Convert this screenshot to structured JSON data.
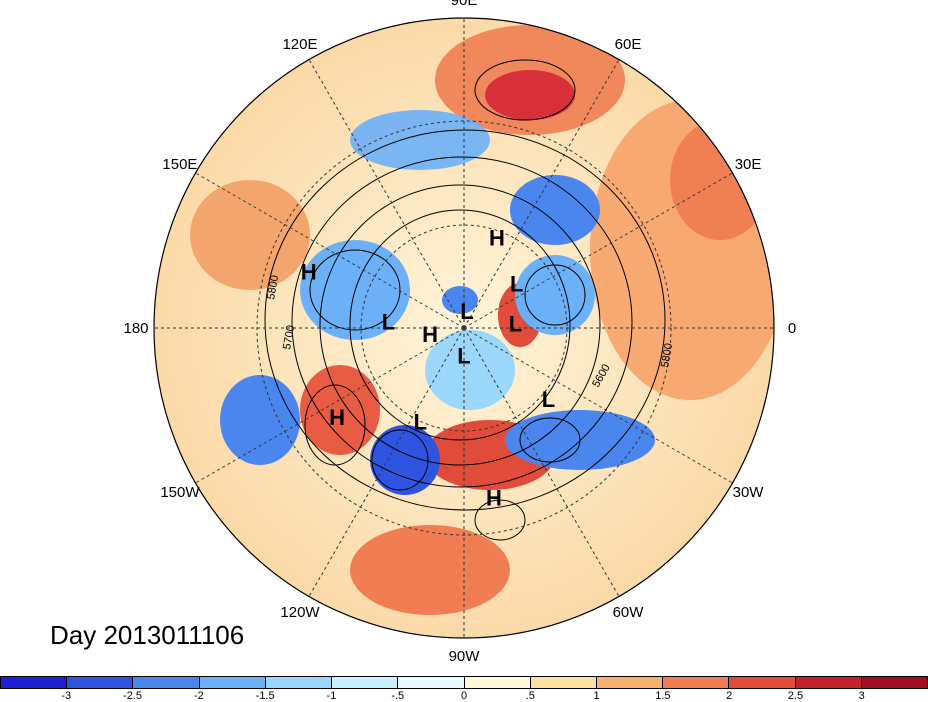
{
  "title": "Day 2013011106",
  "longitude_labels": [
    "90E",
    "60E",
    "30E",
    "0",
    "30W",
    "60W",
    "90W",
    "120W",
    "150W",
    "180",
    "150E",
    "120E"
  ],
  "contour_labels": [
    "5800",
    "5700",
    "5600",
    "5800"
  ],
  "pressure_centers": [
    {
      "label": "H",
      "lon": 70,
      "lat": 62
    },
    {
      "label": "H",
      "lon": 160,
      "lat": 42
    },
    {
      "label": "L",
      "lon": 40,
      "lat": 70
    },
    {
      "label": "L",
      "lon": 175,
      "lat": 68
    },
    {
      "label": "H",
      "lon": 190,
      "lat": 80
    },
    {
      "label": "L",
      "lon": 80,
      "lat": 85
    },
    {
      "label": "L",
      "lon": 5,
      "lat": 75
    },
    {
      "label": "L",
      "lon": 270,
      "lat": 82
    },
    {
      "label": "H",
      "lon": 215,
      "lat": 45
    },
    {
      "label": "L",
      "lon": 245,
      "lat": 60
    },
    {
      "label": "L",
      "lon": 320,
      "lat": 58
    },
    {
      "label": "H",
      "lon": 280,
      "lat": 40
    }
  ],
  "colorbar": {
    "ticks": [
      "-3",
      "-2.5",
      "-2",
      "-1.5",
      "-1",
      "-.5",
      "0",
      ".5",
      "1",
      "1.5",
      "2",
      "2.5",
      "3"
    ],
    "colors": [
      "#1f1fd6",
      "#2f55e0",
      "#4a86ee",
      "#6cb0f7",
      "#9ad7fb",
      "#c8f0fd",
      "#eafbff",
      "#fff8d9",
      "#fbe0a0",
      "#f7b070",
      "#f07e52",
      "#e04b3a",
      "#c4212a",
      "#a0101f"
    ]
  }
}
